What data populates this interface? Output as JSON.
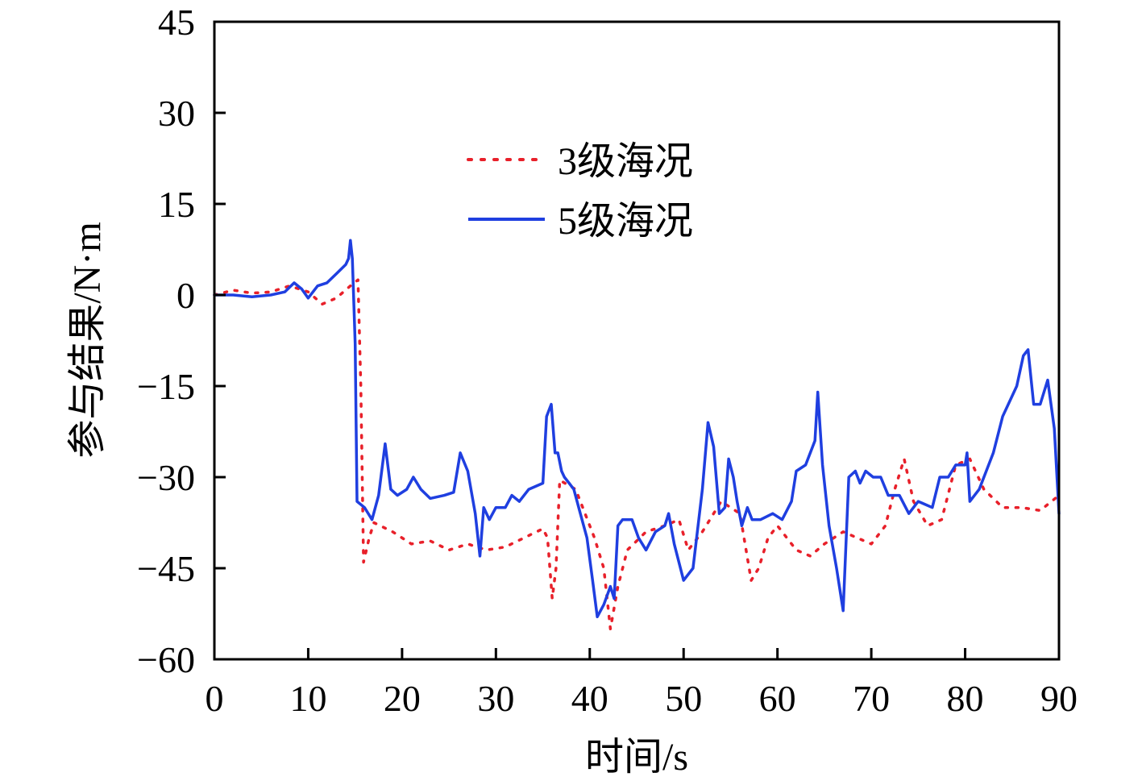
{
  "chart_data": {
    "type": "line",
    "title": "",
    "xlabel": "时间/s",
    "ylabel": "参与结果/N·m",
    "xlim": [
      0,
      90
    ],
    "ylim": [
      -60,
      45
    ],
    "xticks": [
      0,
      10,
      20,
      30,
      40,
      50,
      60,
      70,
      80,
      90
    ],
    "yticks": [
      45,
      30,
      15,
      0,
      -15,
      -30,
      -45,
      -60
    ],
    "xtick_labels": [
      "0",
      "10",
      "20",
      "30",
      "40",
      "50",
      "60",
      "70",
      "80",
      "90"
    ],
    "ytick_labels": [
      "45",
      "30",
      "15",
      "0",
      "−15",
      "−30",
      "−45",
      "−60"
    ],
    "grid": false,
    "legend_position": "upper-center",
    "series": [
      {
        "name": "3级海况",
        "color": "#e8202a",
        "style": "dotted",
        "points": [
          [
            0,
            0
          ],
          [
            2,
            0.8
          ],
          [
            4,
            0.3
          ],
          [
            6,
            0.5
          ],
          [
            8,
            1.5
          ],
          [
            10,
            0.5
          ],
          [
            11.5,
            -1.5
          ],
          [
            13,
            -0.5
          ],
          [
            14.5,
            1.5
          ],
          [
            15.3,
            2.5
          ],
          [
            15.6,
            -15
          ],
          [
            15.9,
            -44
          ],
          [
            16.5,
            -40
          ],
          [
            17,
            -37.5
          ],
          [
            19,
            -39
          ],
          [
            21,
            -41
          ],
          [
            23,
            -40.5
          ],
          [
            25,
            -42
          ],
          [
            27,
            -41
          ],
          [
            29,
            -42
          ],
          [
            31,
            -41.5
          ],
          [
            33,
            -40
          ],
          [
            35,
            -38.5
          ],
          [
            35.5,
            -40
          ],
          [
            36,
            -50
          ],
          [
            36.4,
            -45
          ],
          [
            36.8,
            -30.5
          ],
          [
            38.5,
            -32
          ],
          [
            40.5,
            -40
          ],
          [
            41.5,
            -45
          ],
          [
            42.2,
            -55
          ],
          [
            43,
            -48
          ],
          [
            44,
            -42
          ],
          [
            46,
            -39
          ],
          [
            48,
            -38
          ],
          [
            49.5,
            -37
          ],
          [
            50.5,
            -42
          ],
          [
            52,
            -39
          ],
          [
            54,
            -34
          ],
          [
            56,
            -36
          ],
          [
            57.2,
            -47
          ],
          [
            58,
            -45
          ],
          [
            59,
            -40
          ],
          [
            60,
            -38
          ],
          [
            62,
            -42
          ],
          [
            63.5,
            -43
          ],
          [
            65,
            -41
          ],
          [
            67,
            -39
          ],
          [
            68.5,
            -40
          ],
          [
            70,
            -41
          ],
          [
            71.5,
            -38
          ],
          [
            72.5,
            -32
          ],
          [
            73.5,
            -27
          ],
          [
            74.5,
            -34
          ],
          [
            76,
            -38
          ],
          [
            77.5,
            -37
          ],
          [
            79,
            -28
          ],
          [
            80.5,
            -27
          ],
          [
            82,
            -32
          ],
          [
            84,
            -35
          ],
          [
            86,
            -35
          ],
          [
            88,
            -35.5
          ],
          [
            90,
            -33
          ]
        ]
      },
      {
        "name": "5级海况",
        "color": "#1f3fe0",
        "style": "solid",
        "points": [
          [
            0,
            0
          ],
          [
            2,
            0
          ],
          [
            4,
            -0.3
          ],
          [
            6,
            0
          ],
          [
            7.5,
            0.5
          ],
          [
            8.5,
            2
          ],
          [
            9.3,
            1
          ],
          [
            10,
            -0.5
          ],
          [
            10.5,
            0.5
          ],
          [
            11,
            1.5
          ],
          [
            12,
            2
          ],
          [
            13,
            3.5
          ],
          [
            14,
            5
          ],
          [
            14.3,
            6
          ],
          [
            14.5,
            9
          ],
          [
            14.7,
            6
          ],
          [
            15.0,
            -8
          ],
          [
            15.2,
            -34
          ],
          [
            16,
            -35
          ],
          [
            16.8,
            -37
          ],
          [
            17.5,
            -33
          ],
          [
            18.2,
            -24.5
          ],
          [
            18.8,
            -32
          ],
          [
            19.5,
            -33
          ],
          [
            20.5,
            -32
          ],
          [
            21.2,
            -30
          ],
          [
            22,
            -32
          ],
          [
            23,
            -33.5
          ],
          [
            24.5,
            -33
          ],
          [
            25.5,
            -32.5
          ],
          [
            26.2,
            -26
          ],
          [
            27,
            -29
          ],
          [
            27.8,
            -36
          ],
          [
            28.3,
            -43
          ],
          [
            28.7,
            -35
          ],
          [
            29.3,
            -37
          ],
          [
            30,
            -35
          ],
          [
            31,
            -35
          ],
          [
            31.7,
            -33
          ],
          [
            32.5,
            -34
          ],
          [
            33.5,
            -32
          ],
          [
            35,
            -31
          ],
          [
            35.4,
            -20
          ],
          [
            35.9,
            -18
          ],
          [
            36.3,
            -26
          ],
          [
            36.6,
            -26
          ],
          [
            37,
            -29
          ],
          [
            37.3,
            -30
          ],
          [
            37.8,
            -31
          ],
          [
            38.3,
            -32
          ],
          [
            39,
            -36
          ],
          [
            39.7,
            -40
          ],
          [
            40.3,
            -47
          ],
          [
            40.8,
            -53
          ],
          [
            41.5,
            -51
          ],
          [
            42.2,
            -48
          ],
          [
            42.6,
            -50
          ],
          [
            43,
            -38
          ],
          [
            43.5,
            -37
          ],
          [
            44.5,
            -37
          ],
          [
            45.2,
            -40
          ],
          [
            46,
            -42
          ],
          [
            47,
            -39
          ],
          [
            48,
            -38
          ],
          [
            48.4,
            -36
          ],
          [
            49,
            -41
          ],
          [
            50,
            -47
          ],
          [
            51,
            -45
          ],
          [
            52,
            -32
          ],
          [
            52.6,
            -21
          ],
          [
            53.2,
            -25
          ],
          [
            53.8,
            -36
          ],
          [
            54.4,
            -35
          ],
          [
            54.8,
            -27
          ],
          [
            55.3,
            -30
          ],
          [
            55.7,
            -34
          ],
          [
            56.2,
            -38
          ],
          [
            56.8,
            -35
          ],
          [
            57.3,
            -37
          ],
          [
            58.2,
            -37
          ],
          [
            59.5,
            -36
          ],
          [
            60.5,
            -37
          ],
          [
            61.5,
            -34
          ],
          [
            62,
            -29
          ],
          [
            63,
            -28
          ],
          [
            64,
            -24
          ],
          [
            64.3,
            -16
          ],
          [
            64.8,
            -28
          ],
          [
            65.5,
            -38
          ],
          [
            66.3,
            -45
          ],
          [
            67,
            -52
          ],
          [
            67.6,
            -30
          ],
          [
            68.3,
            -29
          ],
          [
            68.8,
            -31
          ],
          [
            69.4,
            -29
          ],
          [
            70.2,
            -30
          ],
          [
            71,
            -30
          ],
          [
            71.8,
            -33
          ],
          [
            73,
            -33
          ],
          [
            74,
            -36
          ],
          [
            75,
            -34
          ],
          [
            76.5,
            -35
          ],
          [
            77.3,
            -30
          ],
          [
            78.2,
            -30
          ],
          [
            79,
            -28
          ],
          [
            80,
            -28
          ],
          [
            80.2,
            -26
          ],
          [
            80.5,
            -34
          ],
          [
            81.5,
            -32
          ],
          [
            83,
            -26
          ],
          [
            84,
            -20
          ],
          [
            85.5,
            -15
          ],
          [
            86.2,
            -10
          ],
          [
            86.7,
            -9
          ],
          [
            87.3,
            -18
          ],
          [
            88,
            -18
          ],
          [
            88.8,
            -14
          ],
          [
            89.5,
            -22
          ],
          [
            90,
            -36
          ]
        ]
      }
    ]
  }
}
